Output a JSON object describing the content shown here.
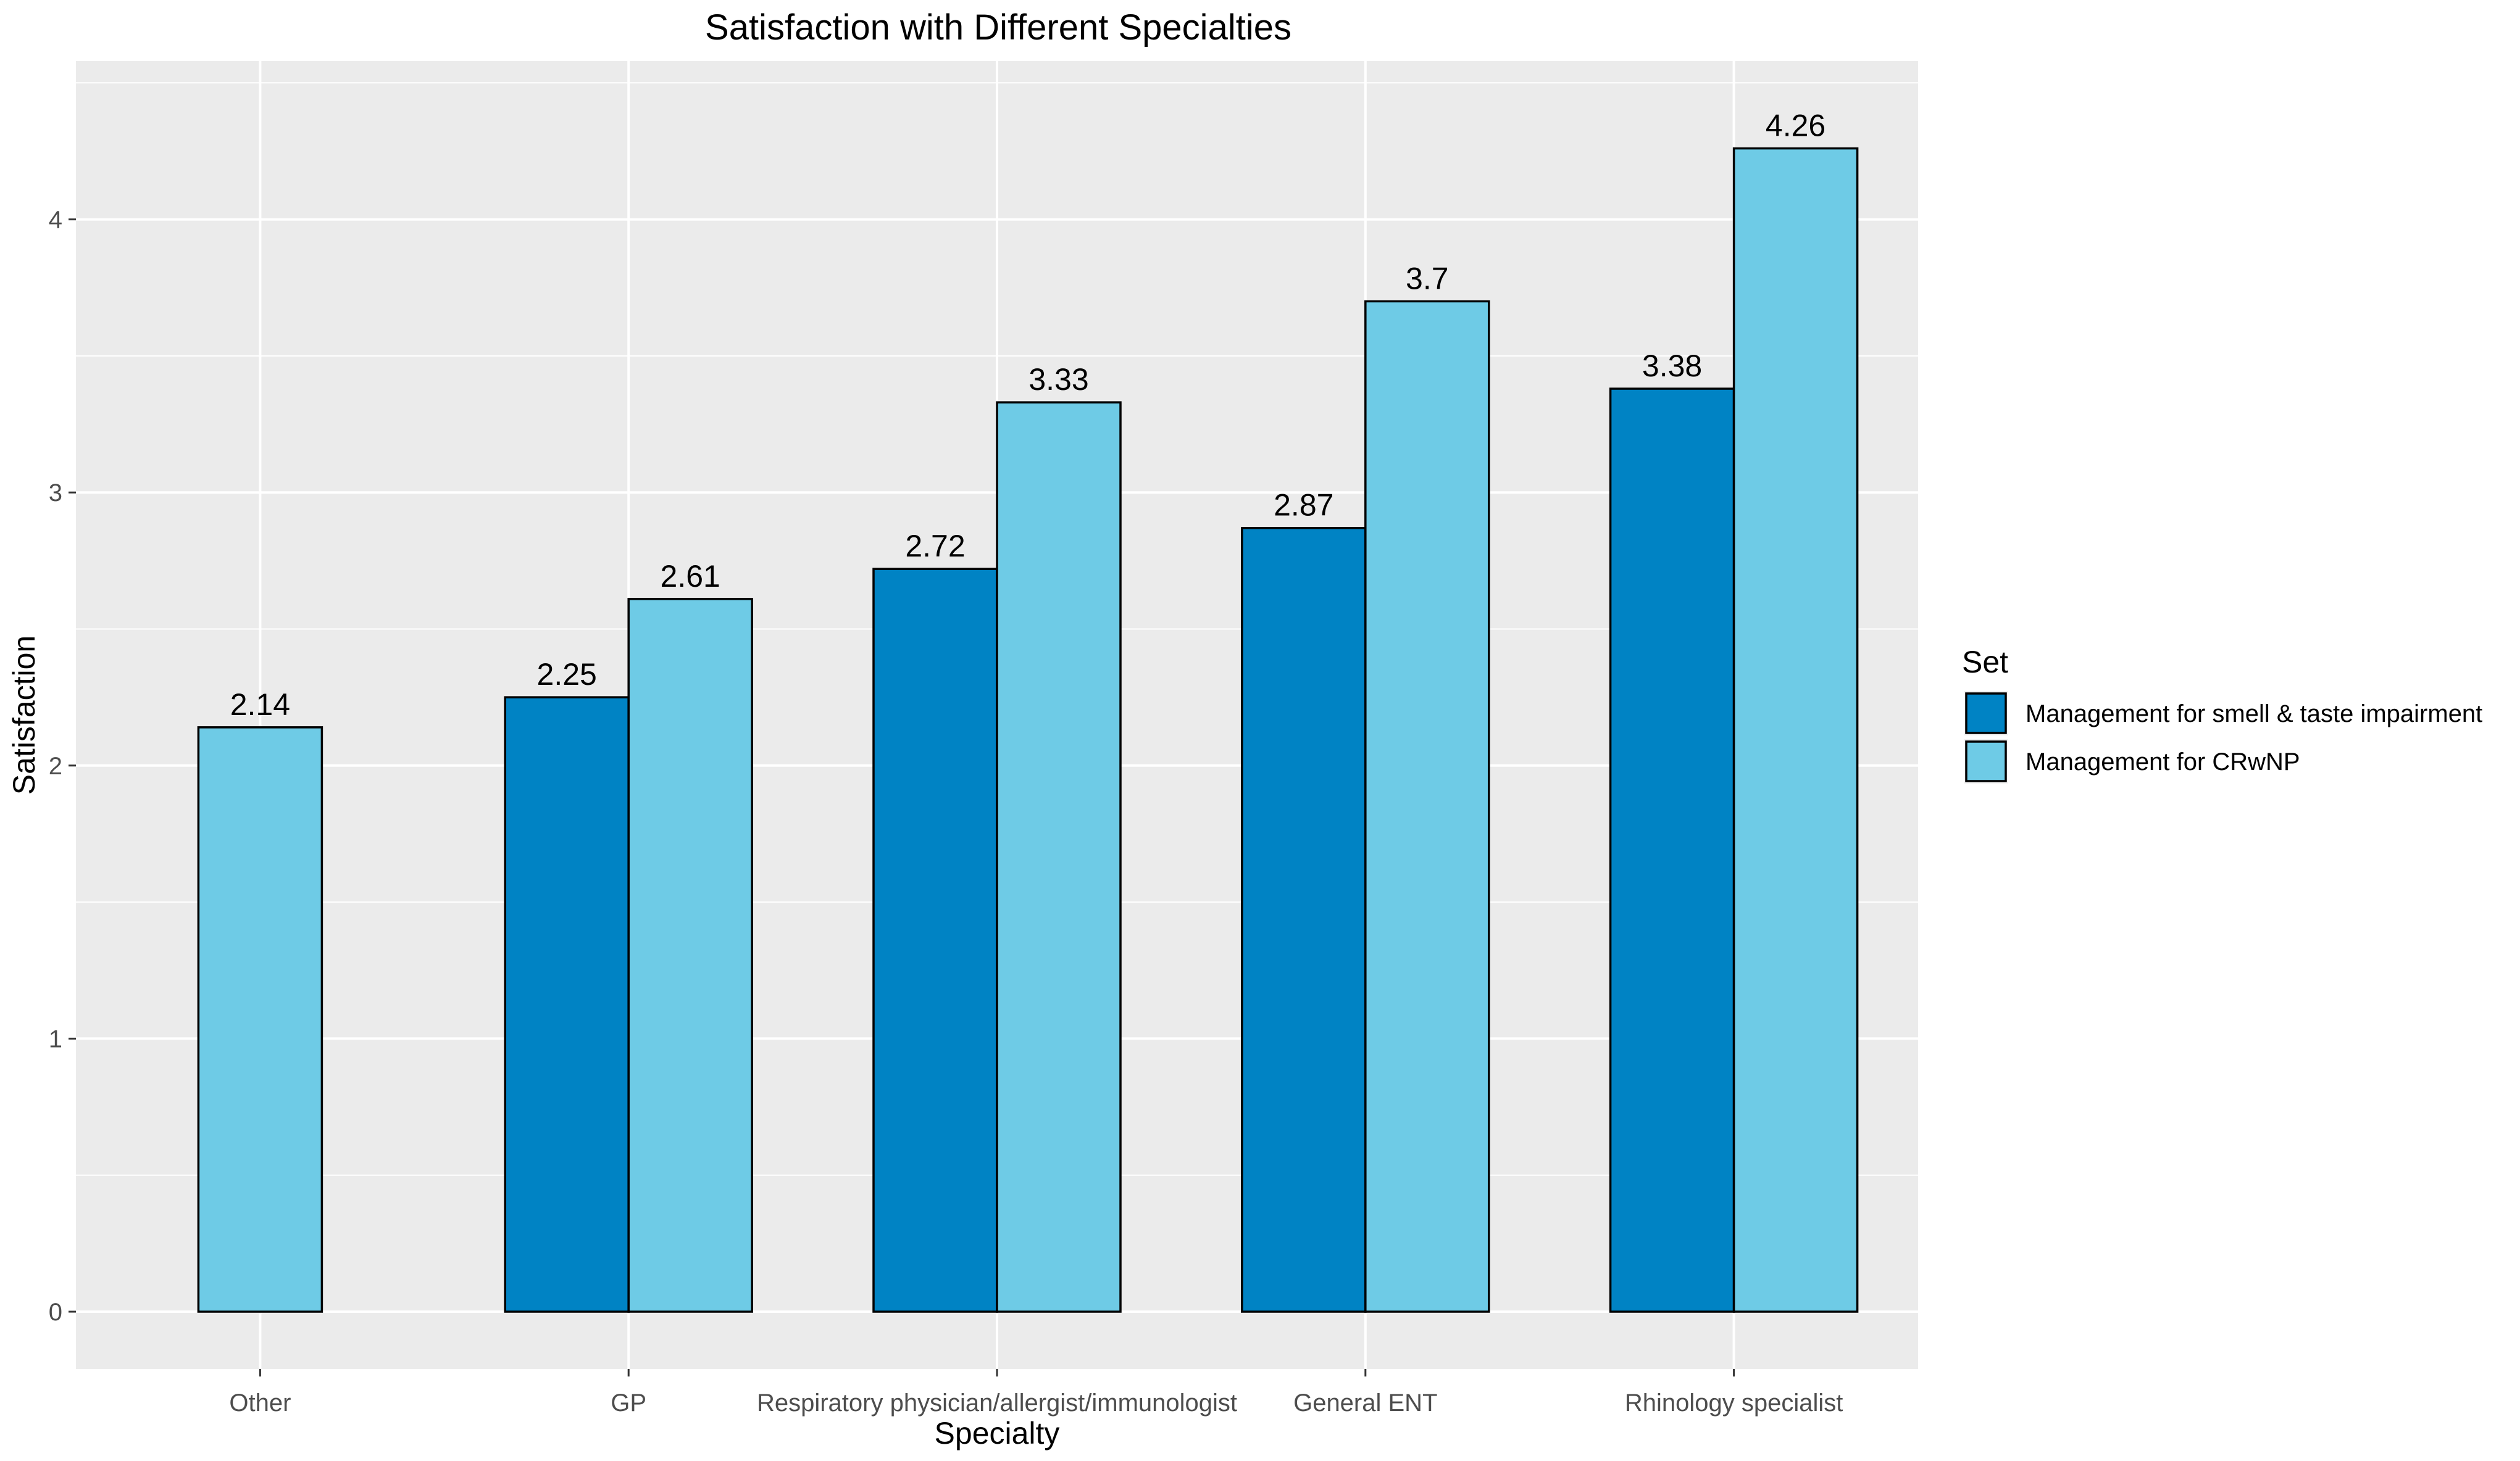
{
  "chart_data": {
    "type": "bar",
    "title": "Satisfaction with Different Specialties",
    "xlabel": "Specialty",
    "ylabel": "Satisfaction",
    "ylim": [
      -0.2,
      4.55
    ],
    "yticks": [
      0,
      1,
      2,
      3,
      4
    ],
    "grid": true,
    "legend": {
      "title": "Set",
      "placement": "right"
    },
    "categories": [
      "Other",
      "GP",
      "Respiratory physician/allergist/immunologist",
      "General ENT",
      "Rhinology specialist"
    ],
    "series": [
      {
        "name": "Management for smell & taste impairment",
        "color": "#0083c4",
        "values": [
          null,
          2.25,
          2.72,
          2.87,
          3.38
        ]
      },
      {
        "name": "Management for CRwNP",
        "color": "#6ecbe6",
        "values": [
          2.14,
          2.61,
          3.33,
          3.7,
          4.26
        ]
      }
    ],
    "bar_labels": [
      [
        "",
        "2.25",
        "2.72",
        "2.87",
        "3.38"
      ],
      [
        "2.14",
        "2.61",
        "3.33",
        "3.7",
        "4.26"
      ]
    ]
  }
}
